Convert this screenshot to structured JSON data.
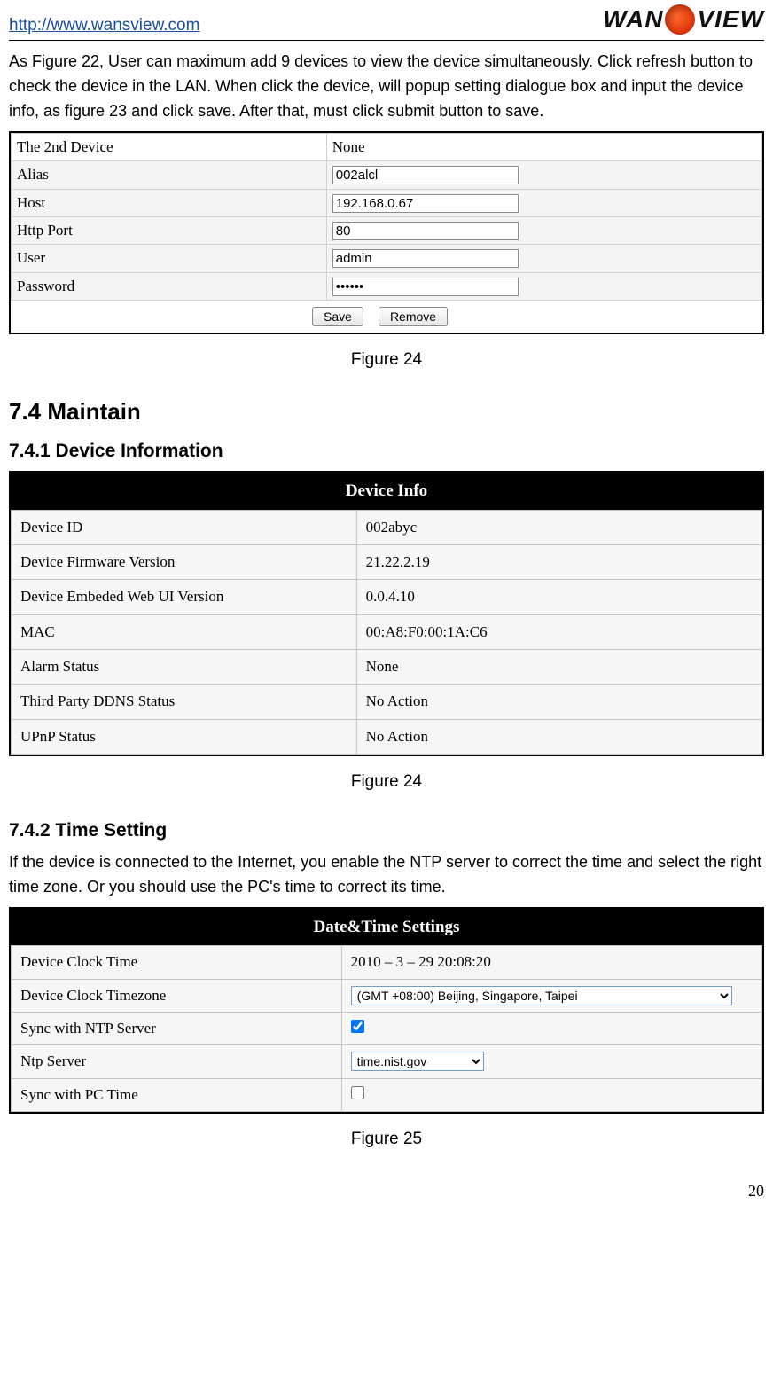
{
  "header": {
    "url": "http://www.wansview.com",
    "logo_left": "WAN",
    "logo_right": "VIEW"
  },
  "intro_para": "As Figure 22, User can maximum add 9 devices to view the device simultaneously. Click refresh button to check the device in the LAN. When click the device, will popup setting dialogue box and input the device info, as figure 23 and click save. After that, must click submit button to save.",
  "fig24a": {
    "head_left": "The 2nd Device",
    "head_right": "None",
    "rows": [
      {
        "label": "Alias",
        "value": "002alcl",
        "type": "text"
      },
      {
        "label": "Host",
        "value": "192.168.0.67",
        "type": "text"
      },
      {
        "label": "Http Port",
        "value": "80",
        "type": "text"
      },
      {
        "label": "User",
        "value": "admin",
        "type": "text"
      },
      {
        "label": "Password",
        "value": "••••••",
        "type": "password"
      }
    ],
    "btn_save": "Save",
    "btn_remove": "Remove",
    "caption": "Figure 24"
  },
  "sec74": "7.4  Maintain",
  "sec741": "7.4.1   Device Information",
  "devinfo": {
    "title": "Device Info",
    "rows": [
      {
        "k": "Device ID",
        "v": "002abyc"
      },
      {
        "k": "Device Firmware Version",
        "v": "21.22.2.19"
      },
      {
        "k": "Device Embeded Web UI Version",
        "v": "0.0.4.10"
      },
      {
        "k": "MAC",
        "v": "00:A8:F0:00:1A:C6"
      },
      {
        "k": "Alarm Status",
        "v": "None"
      },
      {
        "k": "Third Party DDNS Status",
        "v": "No Action"
      },
      {
        "k": "UPnP Status",
        "v": "No Action"
      }
    ],
    "caption": "Figure 24"
  },
  "sec742": "7.4.2   Time Setting",
  "time_para": "If the device is connected to the Internet, you enable the NTP server to correct the time and select the right time zone. Or you should use the PC's time to correct its time.",
  "datetime": {
    "title": "Date&Time Settings",
    "clock_label": "Device Clock Time",
    "clock_value": "2010 – 3 – 29     20:08:20",
    "tz_label": "Device Clock Timezone",
    "tz_value": "(GMT +08:00) Beijing, Singapore, Taipei",
    "syncntp_label": "Sync with NTP Server",
    "ntpserver_label": "Ntp Server",
    "ntpserver_value": "time.nist.gov",
    "syncpc_label": "Sync with PC Time",
    "caption": "Figure 25"
  },
  "page_number": "20"
}
